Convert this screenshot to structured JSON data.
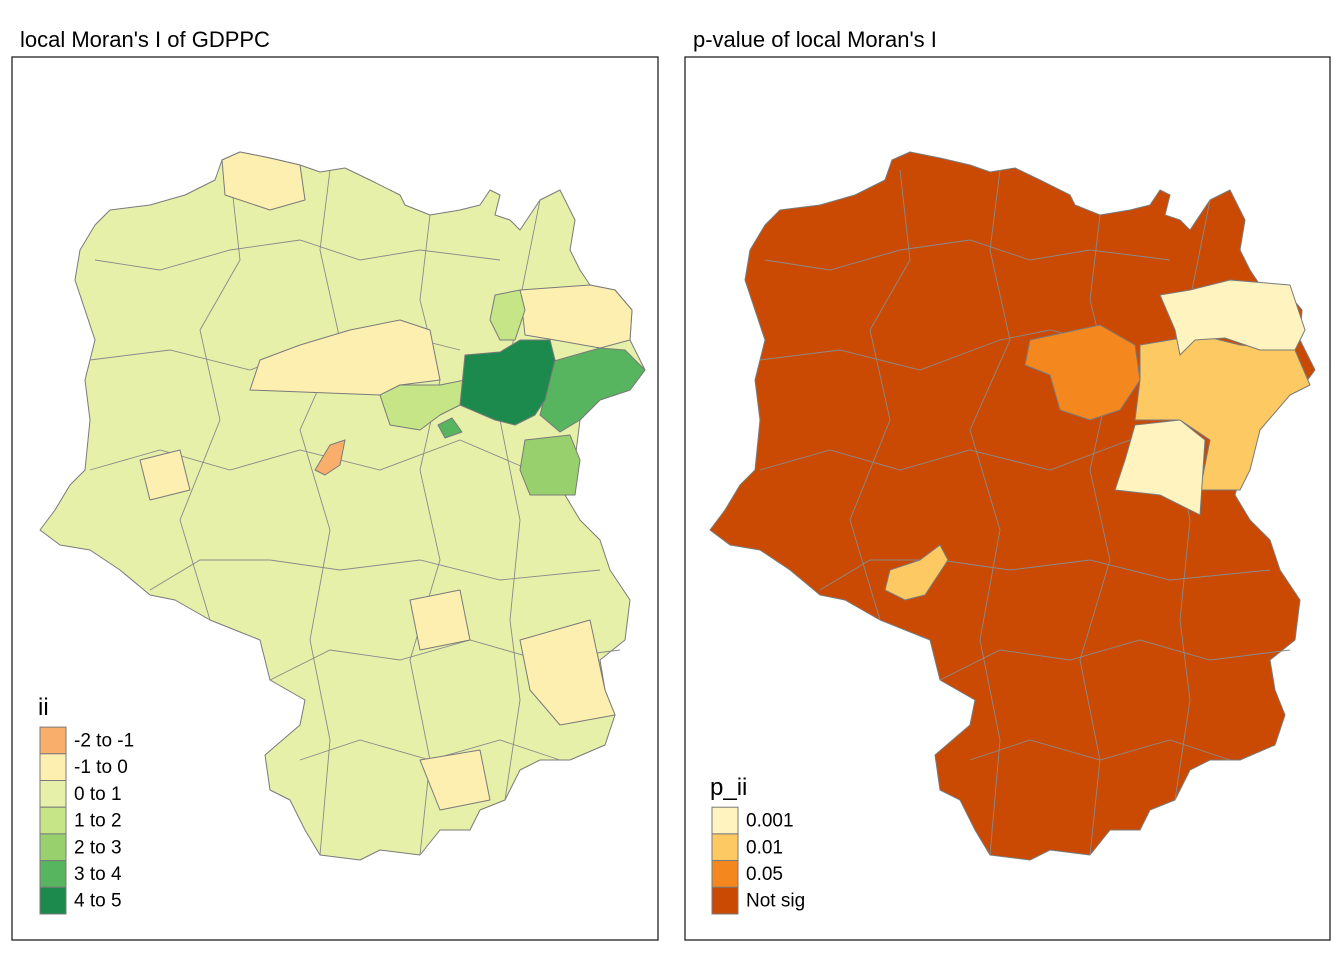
{
  "maps": [
    {
      "title": "local Moran's I of GDPPC",
      "legend": {
        "title": "ii",
        "items": [
          {
            "label": "-2 to -1",
            "color": "#f9ae6b"
          },
          {
            "label": "-1 to 0",
            "color": "#fdefb0"
          },
          {
            "label": "0 to 1",
            "color": "#e6f0a9"
          },
          {
            "label": "1 to 2",
            "color": "#c6e586"
          },
          {
            "label": "2 to 3",
            "color": "#97d06c"
          },
          {
            "label": "3 to 4",
            "color": "#57b45f"
          },
          {
            "label": "4 to 5",
            "color": "#1b8a4c"
          }
        ]
      }
    },
    {
      "title": "p-value of local Moran's I",
      "legend": {
        "title": "p_ii",
        "items": [
          {
            "label": "0.001",
            "color": "#fff3bf"
          },
          {
            "label": "0.01",
            "color": "#fdc962"
          },
          {
            "label": "0.05",
            "color": "#f5871f"
          },
          {
            "label": "Not sig",
            "color": "#cb4a03"
          }
        ]
      }
    }
  ]
}
